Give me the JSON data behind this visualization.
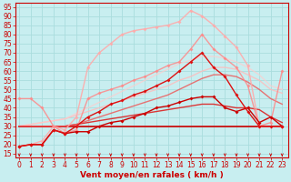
{
  "title": "",
  "xlabel": "Vent moyen/en rafales ( km/h )",
  "ylabel": "",
  "bg_color": "#c8eef0",
  "grid_color": "#aadddd",
  "x_ticks": [
    0,
    1,
    2,
    3,
    4,
    5,
    6,
    7,
    8,
    9,
    10,
    11,
    12,
    13,
    14,
    15,
    16,
    17,
    18,
    19,
    20,
    21,
    22,
    23
  ],
  "y_ticks": [
    15,
    20,
    25,
    30,
    35,
    40,
    45,
    50,
    55,
    60,
    65,
    70,
    75,
    80,
    85,
    90,
    95
  ],
  "ylim": [
    13,
    97
  ],
  "xlim": [
    -0.3,
    23.5
  ],
  "lines": [
    {
      "x": [
        0,
        1,
        2,
        3,
        4,
        5,
        6,
        7,
        8,
        9,
        10,
        11,
        12,
        13,
        14,
        15,
        16,
        17,
        18,
        19,
        20,
        21,
        22,
        23
      ],
      "y": [
        19,
        20,
        20,
        28,
        26,
        27,
        27,
        30,
        32,
        33,
        35,
        37,
        40,
        41,
        43,
        45,
        46,
        46,
        40,
        38,
        40,
        32,
        35,
        30
      ],
      "color": "#cc0000",
      "marker": "D",
      "markersize": 2.0,
      "linewidth": 1.0,
      "alpha": 1.0,
      "zorder": 5
    },
    {
      "x": [
        0,
        1,
        2,
        3,
        4,
        5,
        6,
        7,
        8,
        9,
        10,
        11,
        12,
        13,
        14,
        15,
        16,
        17,
        18,
        19,
        20,
        21,
        22,
        23
      ],
      "y": [
        19,
        20,
        20,
        28,
        26,
        30,
        35,
        38,
        42,
        44,
        47,
        49,
        52,
        55,
        60,
        65,
        70,
        62,
        57,
        47,
        38,
        30,
        30,
        30
      ],
      "color": "#dd1111",
      "marker": "D",
      "markersize": 2.0,
      "linewidth": 1.0,
      "alpha": 1.0,
      "zorder": 5
    },
    {
      "x": [
        0,
        1,
        2,
        3,
        4,
        5,
        6,
        7,
        8,
        9,
        10,
        11,
        12,
        13,
        14,
        15,
        16,
        17,
        18,
        19,
        20,
        21,
        22,
        23
      ],
      "y": [
        30,
        30,
        30,
        30,
        30,
        30,
        30,
        30,
        30,
        30,
        30,
        30,
        30,
        30,
        30,
        30,
        30,
        30,
        30,
        30,
        30,
        30,
        30,
        30
      ],
      "color": "#cc0000",
      "marker": null,
      "markersize": 0,
      "linewidth": 1.2,
      "alpha": 1.0,
      "zorder": 3
    },
    {
      "x": [
        0,
        1,
        2,
        3,
        4,
        5,
        6,
        7,
        8,
        9,
        10,
        11,
        12,
        13,
        14,
        15,
        16,
        17,
        18,
        19,
        20,
        21,
        22,
        23
      ],
      "y": [
        30,
        30,
        30,
        30,
        30,
        31,
        32,
        33,
        34,
        35,
        36,
        37,
        38,
        39,
        40,
        41,
        42,
        42,
        41,
        40,
        40,
        39,
        35,
        32
      ],
      "color": "#dd2222",
      "marker": null,
      "markersize": 0,
      "linewidth": 1.0,
      "alpha": 0.9,
      "zorder": 3
    },
    {
      "x": [
        0,
        1,
        2,
        3,
        4,
        5,
        6,
        7,
        8,
        9,
        10,
        11,
        12,
        13,
        14,
        15,
        16,
        17,
        18,
        19,
        20,
        21,
        22,
        23
      ],
      "y": [
        30,
        30,
        30,
        30,
        30,
        31,
        33,
        35,
        37,
        39,
        41,
        43,
        45,
        47,
        50,
        53,
        56,
        58,
        58,
        57,
        54,
        50,
        45,
        42
      ],
      "color": "#ee5555",
      "marker": null,
      "markersize": 0,
      "linewidth": 1.0,
      "alpha": 0.8,
      "zorder": 3
    },
    {
      "x": [
        0,
        1,
        2,
        3,
        4,
        5,
        6,
        7,
        8,
        9,
        10,
        11,
        12,
        13,
        14,
        15,
        16,
        17,
        18,
        19,
        20,
        21,
        22,
        23
      ],
      "y": [
        19,
        20,
        22,
        30,
        28,
        35,
        62,
        70,
        75,
        80,
        82,
        83,
        84,
        85,
        87,
        93,
        90,
        85,
        79,
        73,
        63,
        30,
        30,
        30
      ],
      "color": "#ffaaaa",
      "marker": "D",
      "markersize": 2.0,
      "linewidth": 1.0,
      "alpha": 0.9,
      "zorder": 4
    },
    {
      "x": [
        0,
        1,
        2,
        3,
        4,
        5,
        6,
        7,
        8,
        9,
        10,
        11,
        12,
        13,
        14,
        15,
        16,
        17,
        18,
        19,
        20,
        21,
        22,
        23
      ],
      "y": [
        45,
        45,
        40,
        30,
        26,
        28,
        45,
        48,
        50,
        52,
        55,
        57,
        60,
        63,
        65,
        72,
        80,
        72,
        67,
        62,
        52,
        30,
        32,
        60
      ],
      "color": "#ff8888",
      "marker": "D",
      "markersize": 2.0,
      "linewidth": 1.0,
      "alpha": 0.85,
      "zorder": 4
    },
    {
      "x": [
        0,
        1,
        2,
        3,
        4,
        5,
        6,
        7,
        8,
        9,
        10,
        11,
        12,
        13,
        14,
        15,
        16,
        17,
        18,
        19,
        20,
        21,
        22,
        23
      ],
      "y": [
        30,
        31,
        32,
        33,
        34,
        36,
        38,
        40,
        42,
        44,
        46,
        48,
        50,
        52,
        55,
        57,
        60,
        62,
        62,
        61,
        58,
        55,
        50,
        48
      ],
      "color": "#ffbbbb",
      "marker": null,
      "markersize": 0,
      "linewidth": 1.0,
      "alpha": 0.8,
      "zorder": 2
    },
    {
      "x": [
        0,
        1,
        2,
        3,
        4,
        5,
        6,
        7,
        8,
        9,
        10,
        11,
        12,
        13,
        14,
        15,
        16,
        17,
        18,
        19,
        20,
        21,
        22,
        23
      ],
      "y": [
        30,
        31,
        32,
        33,
        34,
        37,
        40,
        43,
        46,
        49,
        52,
        55,
        58,
        61,
        64,
        66,
        68,
        68,
        67,
        65,
        62,
        58,
        52,
        50
      ],
      "color": "#ffcccc",
      "marker": null,
      "markersize": 0,
      "linewidth": 1.0,
      "alpha": 0.7,
      "zorder": 2
    }
  ],
  "arrow_color": "#cc0000",
  "tick_fontsize": 5.5,
  "xlabel_fontsize": 6.5
}
